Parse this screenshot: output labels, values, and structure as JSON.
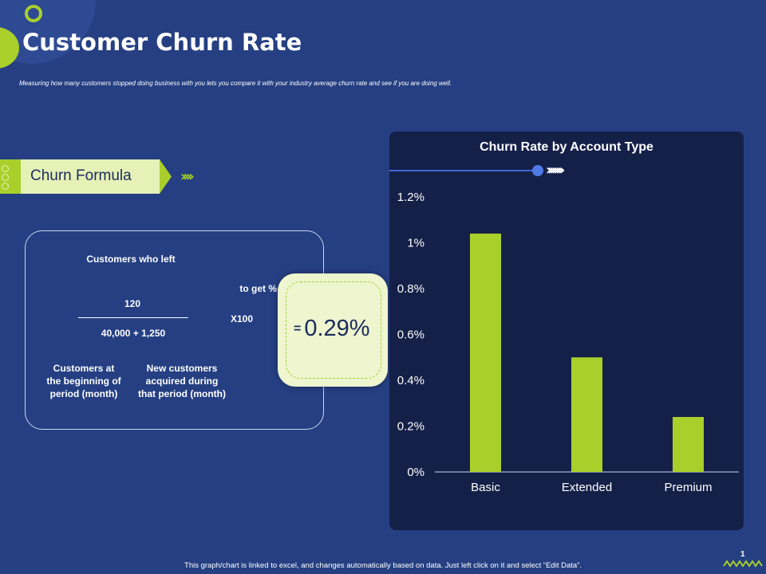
{
  "slide": {
    "title": "Customer Churn Rate",
    "subtitle": "Measuring how many customers stopped doing business with you lets you compare  it with your industry average churn rate and see if you are doing well.",
    "footer": "This graph/chart is linked to excel, and changes automatically based on data. Just left click on it and select “Edit Data”.",
    "page_number": "1"
  },
  "formula": {
    "tab_label": "Churn Formula",
    "customers_who_left_label": "Customers who left",
    "numerator": "120",
    "denominator": "40,000 + 1,250",
    "to_get_label": "to get %",
    "multiplier": "X100",
    "beginning_label_1": "Customers at",
    "beginning_label_2": "the beginning  of",
    "beginning_label_3": "period (month)",
    "new_label_1": "New customers",
    "new_label_2": "acquired during",
    "new_label_3": "that period (month)",
    "result_eq": "=",
    "result_value": "0.29%"
  },
  "colors": {
    "background": "#253f82",
    "accent": "#a9cf2b",
    "chart_panel": "#152048",
    "bar": "#a9cf2b"
  },
  "chart_data": {
    "type": "bar",
    "title": "Churn Rate by Account Type",
    "categories": [
      "Basic",
      "Extended",
      "Premium"
    ],
    "values": [
      1.04,
      0.5,
      0.24
    ],
    "ylim": [
      0,
      1.2
    ],
    "yticks": [
      0,
      0.2,
      0.4,
      0.6,
      0.8,
      1,
      1.2
    ],
    "ytick_labels": [
      "0%",
      "0.2%",
      "0.4%",
      "0.6%",
      "0.8%",
      "1%",
      "1.2%"
    ],
    "xlabel": "",
    "ylabel": "",
    "grid": false,
    "legend": "none"
  }
}
